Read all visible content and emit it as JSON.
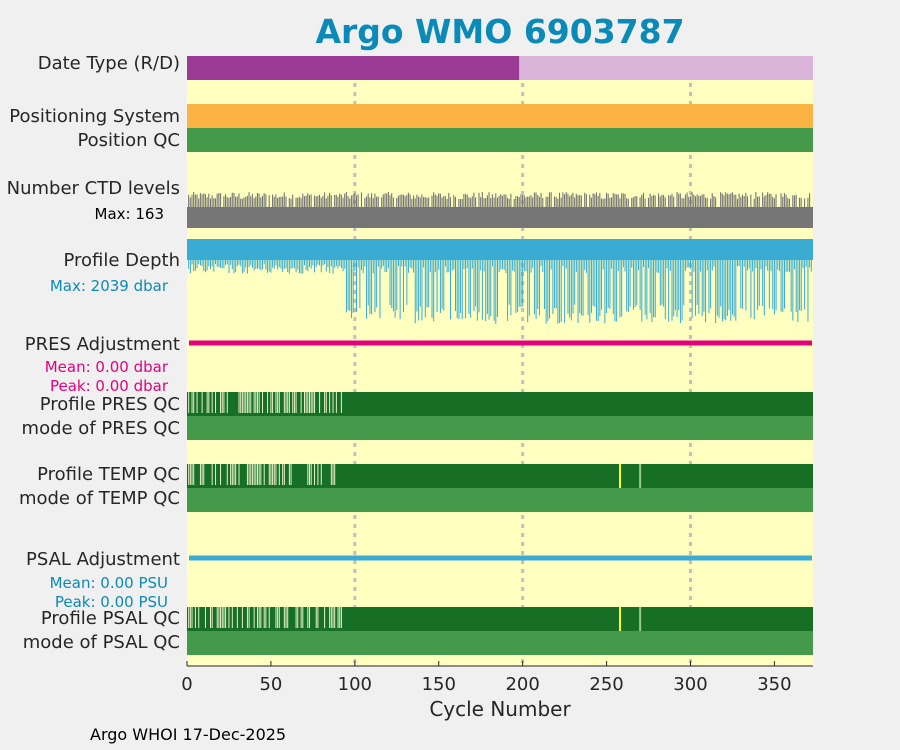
{
  "chart_data": {
    "type": "table",
    "title": "Argo WMO 6903787",
    "xlabel": "Cycle Number",
    "xlim": [
      0,
      373
    ],
    "xticks": [
      "0",
      "50",
      "100",
      "150",
      "200",
      "250",
      "300",
      "350"
    ],
    "xtick_values": [
      0,
      50,
      100,
      150,
      200,
      250,
      300,
      350
    ],
    "grid_x": [
      100,
      200,
      300
    ],
    "rows": {
      "date_type": {
        "label": "Date Type (R/D)",
        "segments": [
          {
            "from": 0,
            "to": 198,
            "mode": "R"
          },
          {
            "from": 198,
            "to": 373,
            "mode": "D"
          }
        ]
      },
      "positioning_system": {
        "label": "Positioning System"
      },
      "position_qc": {
        "label": "Position QC"
      },
      "ctd_levels": {
        "label": "Number CTD levels",
        "max_text": "Max: 163",
        "max": 163
      },
      "profile_depth": {
        "label": "Profile Depth",
        "max_text": "Max: 2039 dbar",
        "max": 2039
      },
      "pres_adjustment": {
        "label": "PRES Adjustment",
        "mean_text": "Mean: 0.00 dbar",
        "peak_text": "Peak: 0.00 dbar"
      },
      "profile_pres_qc": {
        "label": "Profile PRES QC",
        "early_cycle_end": 93
      },
      "mode_pres_qc": {
        "label": "mode of PRES QC"
      },
      "profile_temp_qc": {
        "label": "Profile TEMP QC",
        "early_cycle_end": 93,
        "flag_cycles": [
          258
        ],
        "mark_cycles": [
          270
        ]
      },
      "mode_temp_qc": {
        "label": "mode of TEMP QC"
      },
      "psal_adjustment": {
        "label": "PSAL Adjustment",
        "mean_text": "Mean: 0.00 PSU",
        "peak_text": "Peak: 0.00 PSU"
      },
      "profile_psal_qc": {
        "label": "Profile PSAL QC",
        "early_cycle_end": 93,
        "flag_cycles": [
          258
        ],
        "mark_cycles": [
          270
        ]
      },
      "mode_psal_qc": {
        "label": "mode of PSAL QC"
      }
    }
  },
  "colors": {
    "bg": "#ffffc0",
    "realtime": "#9b3b95",
    "delayed": "#dbb5d9",
    "orange": "#fbb444",
    "green": "#44994a",
    "dark_green": "#176e25",
    "gray": "#767676",
    "cyan": "#3aabd2",
    "magenta": "#e6007e",
    "yellow": "#ffff00",
    "grid": "#c0c0c0"
  },
  "footer": "Argo WHOI 17-Dec-2025"
}
